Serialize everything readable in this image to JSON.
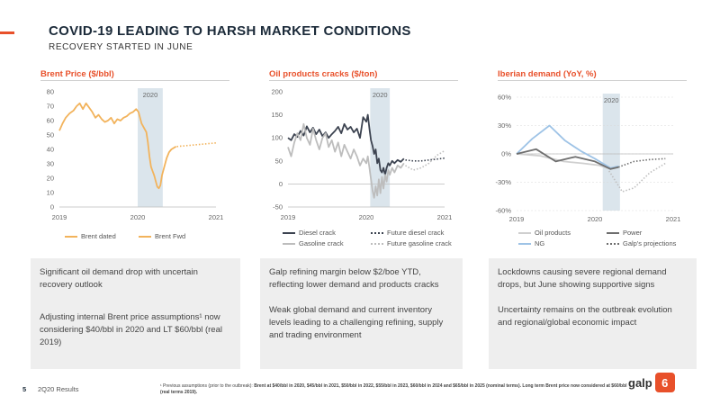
{
  "header": {
    "title": "COVID-19 LEADING TO HARSH MARKET CONDITIONS",
    "subtitle": "RECOVERY STARTED IN JUNE",
    "accent_color": "#e8502a"
  },
  "panels": [
    {
      "title": "Brent Price ($/bbl)",
      "legend": [
        "Brent dated",
        "Brent Fwd"
      ],
      "text": [
        "Significant oil demand drop with uncertain recovery outlook",
        "Adjusting internal Brent price assumptions¹ now considering $40/bbl in 2020 and LT $60/bbl (real 2019)"
      ]
    },
    {
      "title": "Oil products cracks ($/ton)",
      "legend": [
        "Diesel crack",
        "Future diesel crack",
        "Gasoline crack",
        "Future gasoline crack"
      ],
      "text": [
        "Galp refining margin below $2/boe YTD, reflecting lower demand and products cracks",
        "Weak global demand and current inventory levels leading to a challenging refining, supply and trading environment"
      ]
    },
    {
      "title": "Iberian demand (YoY, %)",
      "legend": [
        "Oil products",
        "Power",
        "NG",
        "Galp's projections"
      ],
      "text": [
        "Lockdowns causing severe regional demand drops, but June showing supportive signs",
        "Uncertainty remains on the outbreak evolution and regional/global economic impact"
      ]
    }
  ],
  "chart_data": [
    {
      "type": "line",
      "title": "Brent Price ($/bbl)",
      "highlight_label": "2020",
      "x_ticks": [
        "2019",
        "2020",
        "2021"
      ],
      "ylim": [
        0,
        80
      ],
      "y_ticks": [
        0,
        10,
        20,
        30,
        40,
        50,
        60,
        70,
        80
      ],
      "series": [
        {
          "name": "Brent dated",
          "color": "#f2b35c",
          "style": "solid",
          "points": [
            [
              2019.0,
              53
            ],
            [
              2019.04,
              58
            ],
            [
              2019.08,
              62
            ],
            [
              2019.13,
              65
            ],
            [
              2019.18,
              67
            ],
            [
              2019.22,
              70
            ],
            [
              2019.26,
              72
            ],
            [
              2019.3,
              68
            ],
            [
              2019.34,
              72
            ],
            [
              2019.38,
              69
            ],
            [
              2019.42,
              66
            ],
            [
              2019.46,
              62
            ],
            [
              2019.5,
              64
            ],
            [
              2019.54,
              61
            ],
            [
              2019.58,
              59
            ],
            [
              2019.62,
              60
            ],
            [
              2019.66,
              62
            ],
            [
              2019.7,
              58
            ],
            [
              2019.74,
              61
            ],
            [
              2019.78,
              60
            ],
            [
              2019.82,
              62
            ],
            [
              2019.86,
              63
            ],
            [
              2019.9,
              65
            ],
            [
              2019.94,
              66
            ],
            [
              2019.98,
              68
            ],
            [
              2020.01,
              66
            ],
            [
              2020.03,
              62
            ],
            [
              2020.05,
              58
            ],
            [
              2020.07,
              56
            ],
            [
              2020.09,
              54
            ],
            [
              2020.11,
              52
            ],
            [
              2020.13,
              45
            ],
            [
              2020.15,
              35
            ],
            [
              2020.17,
              28
            ],
            [
              2020.19,
              25
            ],
            [
              2020.21,
              22
            ],
            [
              2020.23,
              18
            ],
            [
              2020.25,
              14
            ],
            [
              2020.27,
              13
            ],
            [
              2020.29,
              15
            ],
            [
              2020.31,
              22
            ],
            [
              2020.34,
              28
            ],
            [
              2020.37,
              34
            ],
            [
              2020.4,
              38
            ],
            [
              2020.43,
              40
            ],
            [
              2020.46,
              41
            ],
            [
              2020.49,
              42
            ]
          ]
        },
        {
          "name": "Brent Fwd",
          "color": "#f2b35c",
          "style": "dotted",
          "points": [
            [
              2020.5,
              42
            ],
            [
              2020.6,
              42.5
            ],
            [
              2020.7,
              43
            ],
            [
              2020.8,
              43.5
            ],
            [
              2020.9,
              44
            ],
            [
              2021.0,
              44.5
            ]
          ]
        }
      ]
    },
    {
      "type": "line",
      "title": "Oil products cracks ($/ton)",
      "highlight_label": "2020",
      "x_ticks": [
        "2019",
        "2020",
        "2021"
      ],
      "ylim": [
        -50,
        200
      ],
      "y_ticks": [
        -50,
        0,
        50,
        100,
        150,
        200
      ],
      "series": [
        {
          "name": "Diesel crack",
          "color": "#3c4350",
          "style": "solid",
          "points": [
            [
              2019.0,
              100
            ],
            [
              2019.04,
              95
            ],
            [
              2019.08,
              108
            ],
            [
              2019.12,
              102
            ],
            [
              2019.16,
              115
            ],
            [
              2019.2,
              105
            ],
            [
              2019.24,
              125
            ],
            [
              2019.28,
              112
            ],
            [
              2019.32,
              122
            ],
            [
              2019.36,
              108
            ],
            [
              2019.4,
              118
            ],
            [
              2019.44,
              104
            ],
            [
              2019.48,
              112
            ],
            [
              2019.52,
              100
            ],
            [
              2019.56,
              108
            ],
            [
              2019.6,
              115
            ],
            [
              2019.64,
              124
            ],
            [
              2019.68,
              110
            ],
            [
              2019.72,
              130
            ],
            [
              2019.76,
              118
            ],
            [
              2019.8,
              124
            ],
            [
              2019.84,
              112
            ],
            [
              2019.88,
              120
            ],
            [
              2019.92,
              100
            ],
            [
              2019.96,
              145
            ],
            [
              2020.0,
              135
            ],
            [
              2020.02,
              150
            ],
            [
              2020.04,
              120
            ],
            [
              2020.06,
              95
            ],
            [
              2020.08,
              82
            ],
            [
              2020.1,
              65
            ],
            [
              2020.12,
              75
            ],
            [
              2020.14,
              45
            ],
            [
              2020.16,
              55
            ],
            [
              2020.18,
              30
            ],
            [
              2020.2,
              25
            ],
            [
              2020.22,
              35
            ],
            [
              2020.24,
              20
            ],
            [
              2020.26,
              35
            ],
            [
              2020.28,
              45
            ],
            [
              2020.3,
              40
            ],
            [
              2020.33,
              50
            ],
            [
              2020.36,
              45
            ],
            [
              2020.4,
              52
            ],
            [
              2020.44,
              48
            ],
            [
              2020.48,
              55
            ]
          ]
        },
        {
          "name": "Gasoline crack",
          "color": "#bdbdbd",
          "style": "solid",
          "points": [
            [
              2019.0,
              80
            ],
            [
              2019.04,
              60
            ],
            [
              2019.08,
              90
            ],
            [
              2019.12,
              110
            ],
            [
              2019.16,
              95
            ],
            [
              2019.2,
              130
            ],
            [
              2019.24,
              100
            ],
            [
              2019.28,
              85
            ],
            [
              2019.32,
              120
            ],
            [
              2019.36,
              95
            ],
            [
              2019.4,
              75
            ],
            [
              2019.44,
              100
            ],
            [
              2019.48,
              110
            ],
            [
              2019.52,
              80
            ],
            [
              2019.56,
              95
            ],
            [
              2019.6,
              70
            ],
            [
              2019.64,
              90
            ],
            [
              2019.68,
              60
            ],
            [
              2019.72,
              85
            ],
            [
              2019.76,
              70
            ],
            [
              2019.8,
              55
            ],
            [
              2019.84,
              75
            ],
            [
              2019.88,
              60
            ],
            [
              2019.92,
              40
            ],
            [
              2019.96,
              55
            ],
            [
              2020.0,
              45
            ],
            [
              2020.02,
              60
            ],
            [
              2020.04,
              35
            ],
            [
              2020.06,
              10
            ],
            [
              2020.08,
              -15
            ],
            [
              2020.1,
              -30
            ],
            [
              2020.12,
              -5
            ],
            [
              2020.14,
              -25
            ],
            [
              2020.16,
              10
            ],
            [
              2020.18,
              -20
            ],
            [
              2020.2,
              15
            ],
            [
              2020.22,
              -10
            ],
            [
              2020.24,
              20
            ],
            [
              2020.26,
              5
            ],
            [
              2020.28,
              30
            ],
            [
              2020.3,
              20
            ],
            [
              2020.33,
              35
            ],
            [
              2020.36,
              25
            ],
            [
              2020.4,
              40
            ],
            [
              2020.44,
              35
            ],
            [
              2020.48,
              45
            ]
          ]
        },
        {
          "name": "Future diesel crack",
          "color": "#3c4350",
          "style": "dotted",
          "points": [
            [
              2020.5,
              52
            ],
            [
              2020.6,
              50
            ],
            [
              2020.7,
              50
            ],
            [
              2020.8,
              52
            ],
            [
              2020.9,
              54
            ],
            [
              2021.0,
              56
            ]
          ]
        },
        {
          "name": "Future gasoline crack",
          "color": "#bdbdbd",
          "style": "dotted",
          "points": [
            [
              2020.5,
              40
            ],
            [
              2020.6,
              30
            ],
            [
              2020.7,
              35
            ],
            [
              2020.8,
              45
            ],
            [
              2020.9,
              62
            ],
            [
              2021.0,
              72
            ]
          ]
        }
      ]
    },
    {
      "type": "line",
      "title": "Iberian demand (YoY, %)",
      "highlight_label": "2020",
      "x_ticks": [
        "2019",
        "2020",
        "2021"
      ],
      "ylim": [
        -60,
        60
      ],
      "y_ticks": [
        "60%",
        "30%",
        "0%",
        "-30%",
        "-60%"
      ],
      "series": [
        {
          "name": "NG",
          "color": "#9ec3e6",
          "style": "solid",
          "points": [
            [
              2019.0,
              0
            ],
            [
              2019.2,
              16
            ],
            [
              2019.42,
              30
            ],
            [
              2019.62,
              14
            ],
            [
              2019.82,
              3
            ],
            [
              2020.0,
              -5
            ],
            [
              2020.2,
              -15
            ],
            [
              2020.3,
              -13
            ]
          ]
        },
        {
          "name": "Oil products",
          "color": "#cfcfcf",
          "style": "solid",
          "points": [
            [
              2019.0,
              0
            ],
            [
              2019.3,
              -2
            ],
            [
              2019.6,
              -8
            ],
            [
              2019.85,
              -10
            ],
            [
              2020.05,
              -12
            ],
            [
              2020.2,
              -16
            ],
            [
              2020.3,
              -14
            ]
          ]
        },
        {
          "name": "Power",
          "color": "#6e6e6e",
          "style": "solid",
          "points": [
            [
              2019.0,
              0
            ],
            [
              2019.25,
              5
            ],
            [
              2019.5,
              -8
            ],
            [
              2019.75,
              -3
            ],
            [
              2020.0,
              -8
            ],
            [
              2020.2,
              -16
            ],
            [
              2020.3,
              -14
            ]
          ]
        },
        {
          "name": "Galp's projections",
          "color": "#6e6e6e",
          "style": "dotted",
          "points": [
            [
              2020.3,
              -14
            ],
            [
              2020.5,
              -8
            ],
            [
              2020.7,
              -6
            ],
            [
              2020.9,
              -5
            ]
          ]
        },
        {
          "name": "Galp's projections",
          "color": "#bfbfbf",
          "style": "dotted",
          "points": [
            [
              2020.18,
              -18
            ],
            [
              2020.35,
              -40
            ],
            [
              2020.5,
              -36
            ],
            [
              2020.7,
              -20
            ],
            [
              2020.9,
              -10
            ]
          ]
        }
      ]
    }
  ],
  "footer": {
    "page_number": "5",
    "label": "2Q20 Results",
    "footnote_lead": "¹ Previous assumptions (prior to the outbreak): ",
    "footnote_bold": "Brent at $40/bbl in 2020, $45/bbl in 2021, $50/bbl in 2022, $55/bbl in 2023, $60/bbl in 2024 and $65/bbl in 2025 (nominal terms). Long term Brent price now considered at $60/bbl (real terms 2019).",
    "logo_text": "galp",
    "logo_mark": "6"
  }
}
